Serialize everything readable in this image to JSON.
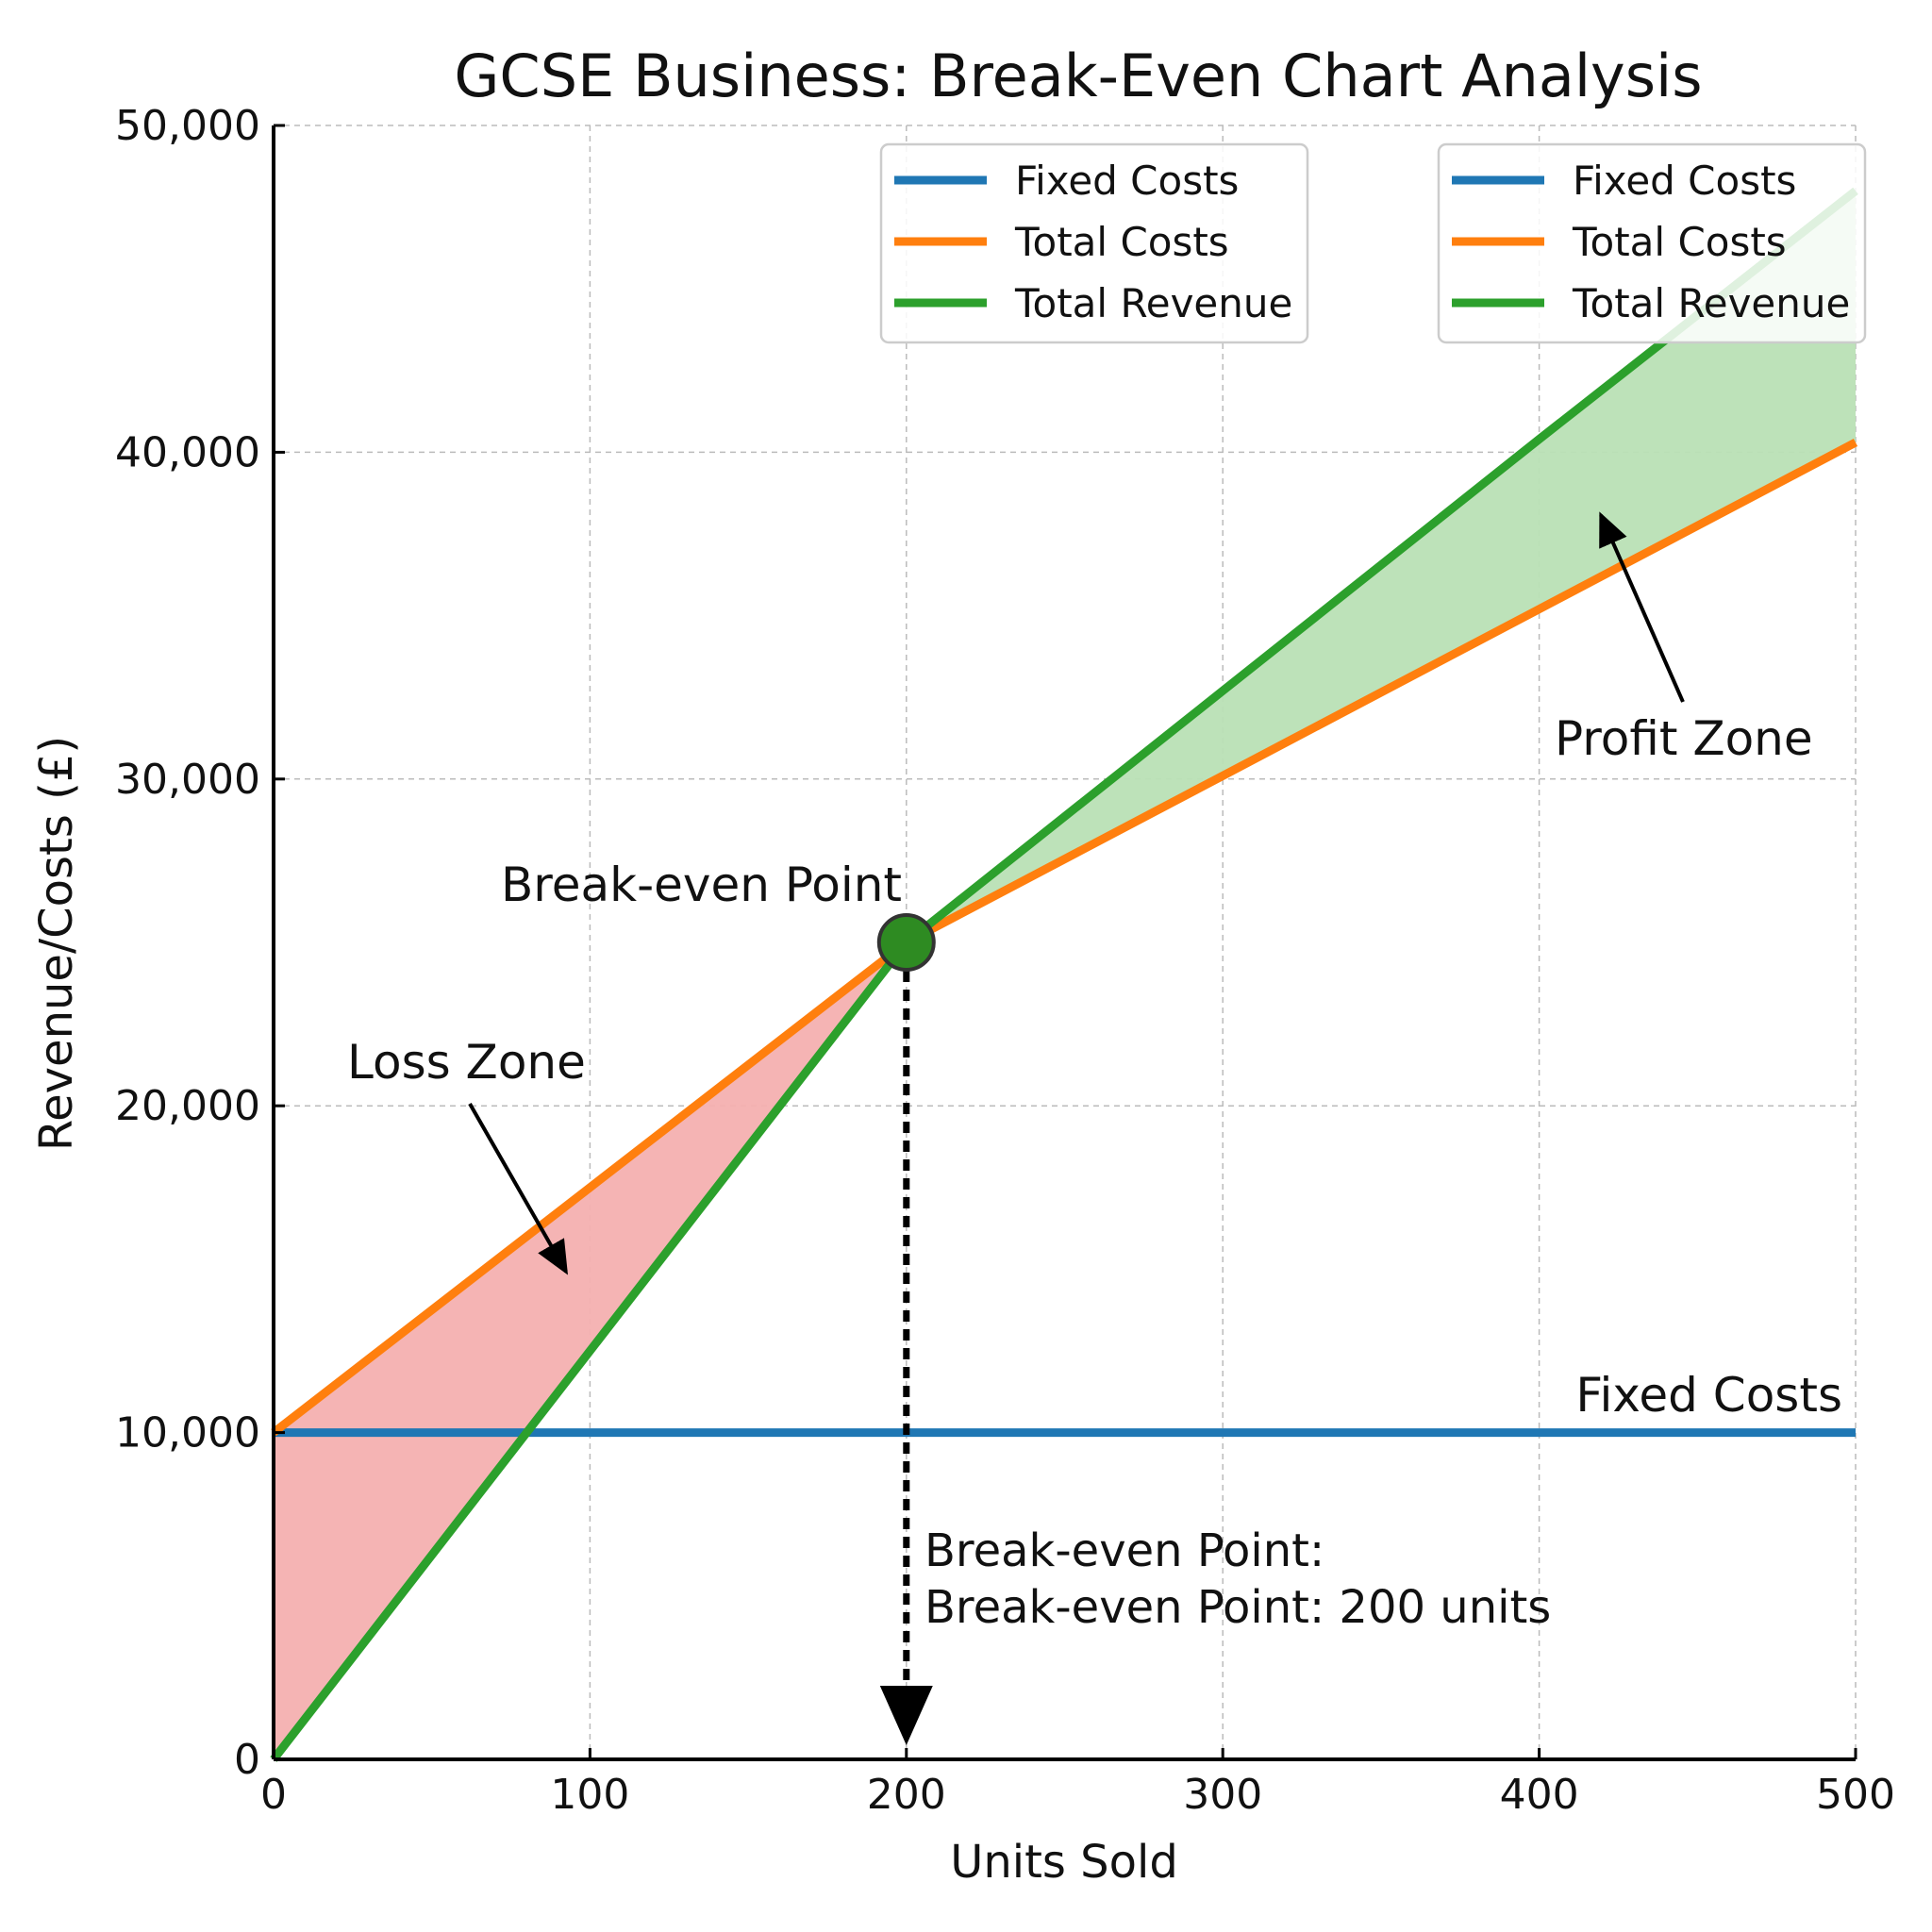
{
  "chart_data": {
    "type": "line",
    "title": "GCSE Business: Break-Even Chart Analysis",
    "xlabel": "Units Sold",
    "ylabel": "Revenue/Costs (£)",
    "xlim": [
      0,
      500
    ],
    "ylim": [
      0,
      50000
    ],
    "x_ticks": [
      "0",
      "100",
      "200",
      "300",
      "400",
      "500"
    ],
    "y_ticks": [
      "0",
      "10,000",
      "20,000",
      "30,000",
      "40,000",
      "50,000"
    ],
    "grid": true,
    "x": [
      0,
      100,
      200,
      300,
      400,
      500
    ],
    "series": [
      {
        "name": "Fixed Costs",
        "color": "#1f77b4",
        "values": [
          10000,
          10000,
          10000,
          10000,
          10000,
          10000
        ]
      },
      {
        "name": "Total Costs",
        "color": "#ff7f0e",
        "values": [
          10000,
          17500,
          25000,
          30100,
          35200,
          40300
        ]
      },
      {
        "name": "Total Revenue",
        "color": "#2ca02c",
        "values": [
          0,
          12500,
          25000,
          32700,
          40400,
          48000
        ]
      }
    ],
    "legends": [
      {
        "placement": "top-center",
        "entries": [
          "Fixed Costs",
          "Total Costs",
          "Total Revenue"
        ]
      },
      {
        "placement": "top-right",
        "entries": [
          "Fixed Costs",
          "Total Costs",
          "Total Revenue"
        ]
      }
    ],
    "fills": [
      {
        "name": "Loss Zone",
        "color": "#f4b0b0",
        "x_range": [
          0,
          200
        ]
      },
      {
        "name": "Profit Zone",
        "color": "#b9e0b5",
        "x_range": [
          200,
          500
        ]
      }
    ],
    "break_even": {
      "x": 200,
      "y": 25000,
      "color": "#2e8b22"
    },
    "annotations": {
      "break_even_label": "Break-even Point",
      "loss_zone": "Loss Zone",
      "profit_zone": "Profit Zone",
      "fixed_costs": "Fixed Costs",
      "bep_line1": "Break-even Point:",
      "bep_line2": "Break-even Point: 200 units"
    }
  }
}
